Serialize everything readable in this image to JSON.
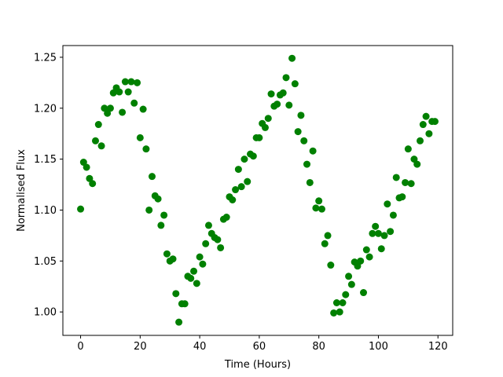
{
  "chart_data": {
    "type": "scatter",
    "title": "",
    "xlabel": "Time (Hours)",
    "ylabel": "Normalised Flux",
    "xlim": [
      -5.95,
      124.95
    ],
    "ylim": [
      0.977,
      1.2615
    ],
    "xticks": [
      0,
      20,
      40,
      60,
      80,
      100,
      120
    ],
    "yticks": [
      1.0,
      1.05,
      1.1,
      1.15,
      1.2,
      1.25
    ],
    "xtick_labels": [
      "0",
      "20",
      "40",
      "60",
      "80",
      "100",
      "120"
    ],
    "ytick_labels": [
      "1.00",
      "1.05",
      "1.10",
      "1.15",
      "1.20",
      "1.25"
    ],
    "grid": false,
    "marker_color": "#008000",
    "series": [
      {
        "points": [
          [
            0,
            1.101
          ],
          [
            1,
            1.147
          ],
          [
            2,
            1.142
          ],
          [
            3,
            1.131
          ],
          [
            4,
            1.126
          ],
          [
            5,
            1.168
          ],
          [
            6,
            1.184
          ],
          [
            7,
            1.163
          ],
          [
            8,
            1.2
          ],
          [
            9,
            1.195
          ],
          [
            10,
            1.2
          ],
          [
            11,
            1.215
          ],
          [
            12,
            1.22
          ],
          [
            13,
            1.216
          ],
          [
            14,
            1.196
          ],
          [
            15,
            1.226
          ],
          [
            16,
            1.216
          ],
          [
            17,
            1.226
          ],
          [
            18,
            1.205
          ],
          [
            19,
            1.225
          ],
          [
            20,
            1.171
          ],
          [
            21,
            1.199
          ],
          [
            22,
            1.16
          ],
          [
            23,
            1.1
          ],
          [
            24,
            1.133
          ],
          [
            25,
            1.114
          ],
          [
            26,
            1.111
          ],
          [
            27,
            1.085
          ],
          [
            28,
            1.095
          ],
          [
            29,
            1.057
          ],
          [
            30,
            1.05
          ],
          [
            31,
            1.052
          ],
          [
            32,
            1.018
          ],
          [
            33,
            0.99
          ],
          [
            34,
            1.008
          ],
          [
            35,
            1.008
          ],
          [
            36,
            1.035
          ],
          [
            37,
            1.033
          ],
          [
            38,
            1.04
          ],
          [
            39,
            1.028
          ],
          [
            40,
            1.054
          ],
          [
            41,
            1.047
          ],
          [
            42,
            1.067
          ],
          [
            43,
            1.085
          ],
          [
            44,
            1.077
          ],
          [
            45,
            1.073
          ],
          [
            46,
            1.071
          ],
          [
            47,
            1.063
          ],
          [
            48,
            1.091
          ],
          [
            49,
            1.093
          ],
          [
            50,
            1.113
          ],
          [
            51,
            1.11
          ],
          [
            52,
            1.12
          ],
          [
            53,
            1.14
          ],
          [
            54,
            1.123
          ],
          [
            55,
            1.15
          ],
          [
            56,
            1.128
          ],
          [
            57,
            1.155
          ],
          [
            58,
            1.153
          ],
          [
            59,
            1.171
          ],
          [
            60,
            1.171
          ],
          [
            61,
            1.185
          ],
          [
            62,
            1.181
          ],
          [
            63,
            1.19
          ],
          [
            64,
            1.214
          ],
          [
            65,
            1.202
          ],
          [
            66,
            1.204
          ],
          [
            67,
            1.213
          ],
          [
            68,
            1.215
          ],
          [
            69,
            1.23
          ],
          [
            70,
            1.203
          ],
          [
            71,
            1.249
          ],
          [
            72,
            1.224
          ],
          [
            73,
            1.177
          ],
          [
            74,
            1.193
          ],
          [
            75,
            1.168
          ],
          [
            76,
            1.145
          ],
          [
            77,
            1.127
          ],
          [
            78,
            1.158
          ],
          [
            79,
            1.102
          ],
          [
            80,
            1.109
          ],
          [
            81,
            1.101
          ],
          [
            82,
            1.067
          ],
          [
            83,
            1.075
          ],
          [
            84,
            1.046
          ],
          [
            85,
            0.999
          ],
          [
            86,
            1.009
          ],
          [
            87,
            1.0
          ],
          [
            88,
            1.009
          ],
          [
            89,
            1.017
          ],
          [
            90,
            1.035
          ],
          [
            91,
            1.027
          ],
          [
            92,
            1.049
          ],
          [
            93,
            1.045
          ],
          [
            94,
            1.05
          ],
          [
            95,
            1.019
          ],
          [
            96,
            1.061
          ],
          [
            97,
            1.054
          ],
          [
            98,
            1.077
          ],
          [
            99,
            1.084
          ],
          [
            100,
            1.077
          ],
          [
            101,
            1.062
          ],
          [
            102,
            1.075
          ],
          [
            103,
            1.106
          ],
          [
            104,
            1.079
          ],
          [
            105,
            1.095
          ],
          [
            106,
            1.132
          ],
          [
            107,
            1.112
          ],
          [
            108,
            1.113
          ],
          [
            109,
            1.127
          ],
          [
            110,
            1.16
          ],
          [
            111,
            1.126
          ],
          [
            112,
            1.15
          ],
          [
            113,
            1.145
          ],
          [
            114,
            1.168
          ],
          [
            115,
            1.184
          ],
          [
            116,
            1.192
          ],
          [
            117,
            1.175
          ],
          [
            118,
            1.187
          ],
          [
            119,
            1.187
          ]
        ]
      }
    ]
  }
}
